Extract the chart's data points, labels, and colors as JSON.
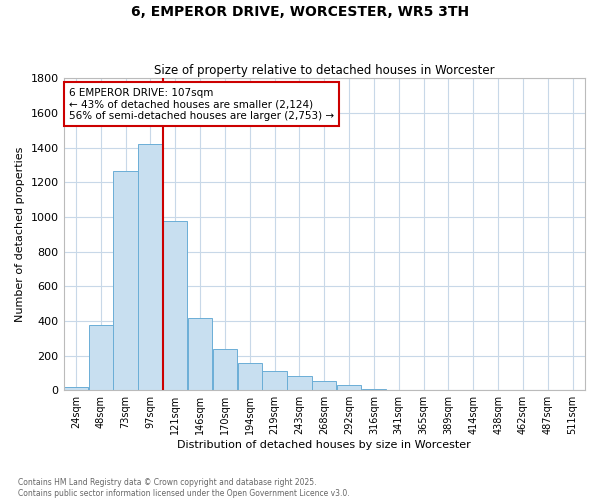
{
  "title": "6, EMPEROR DRIVE, WORCESTER, WR5 3TH",
  "subtitle": "Size of property relative to detached houses in Worcester",
  "xlabel": "Distribution of detached houses by size in Worcester",
  "ylabel": "Number of detached properties",
  "annotation_line1": "6 EMPEROR DRIVE: 107sqm",
  "annotation_line2": "← 43% of detached houses are smaller (2,124)",
  "annotation_line3": "56% of semi-detached houses are larger (2,753) →",
  "footer1": "Contains HM Land Registry data © Crown copyright and database right 2025.",
  "footer2": "Contains public sector information licensed under the Open Government Licence v3.0.",
  "bar_color": "#c8dff0",
  "bar_edge_color": "#6baed6",
  "vertical_line_color": "#cc0000",
  "annotation_box_edge": "#cc0000",
  "background_color": "#ffffff",
  "grid_color": "#c8d8e8",
  "categories": [
    "24sqm",
    "48sqm",
    "73sqm",
    "97sqm",
    "121sqm",
    "146sqm",
    "170sqm",
    "194sqm",
    "219sqm",
    "243sqm",
    "268sqm",
    "292sqm",
    "316sqm",
    "341sqm",
    "365sqm",
    "389sqm",
    "414sqm",
    "438sqm",
    "462sqm",
    "487sqm",
    "511sqm"
  ],
  "values": [
    20,
    375,
    1265,
    1420,
    975,
    415,
    240,
    155,
    110,
    80,
    55,
    30,
    5,
    0,
    0,
    0,
    0,
    0,
    0,
    0,
    0
  ],
  "ylim": [
    0,
    1800
  ],
  "yticks": [
    0,
    200,
    400,
    600,
    800,
    1000,
    1200,
    1400,
    1600,
    1800
  ],
  "vline_index": 3.5
}
